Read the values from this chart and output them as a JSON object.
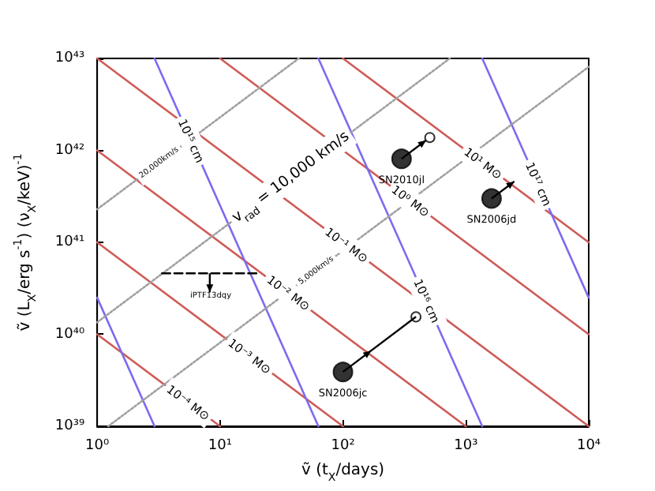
{
  "chart_data": {
    "type": "line",
    "log": "xy",
    "xlabel": "ṽ (t$_{X}$/days)",
    "ylabel": "ṽ (L$_{X}$/erg s$^{-1}$) (ν$_{X}$/keV)$^{-1}$",
    "xlim": [
      1,
      10000
    ],
    "ylim": [
      1e+39,
      1e+43
    ],
    "xticks": [
      {
        "value": 1,
        "label": "10⁰"
      },
      {
        "value": 10,
        "label": "10¹"
      },
      {
        "value": 100,
        "label": "10²"
      },
      {
        "value": 1000,
        "label": "10³"
      },
      {
        "value": 10000,
        "label": "10⁴"
      }
    ],
    "yticks": [
      {
        "value": 1e+39,
        "label": "10³⁹"
      },
      {
        "value": 1e+40,
        "label": "10⁴⁰"
      },
      {
        "value": 1e+41,
        "label": "10⁴¹"
      },
      {
        "value": 1e+42,
        "label": "10⁴²"
      },
      {
        "value": 1e+43,
        "label": "10⁴³"
      }
    ],
    "series": [
      {
        "color": "#cf5b58",
        "x": [
          1,
          10
        ],
        "values": [
          1e+40,
          1e+39
        ]
      },
      {
        "color": "#cf5b58",
        "x": [
          1,
          100
        ],
        "values": [
          1e+41,
          1e+39
        ]
      },
      {
        "color": "#cf5b58",
        "x": [
          1,
          1000
        ],
        "values": [
          1e+42,
          1e+39
        ]
      },
      {
        "color": "#cf5b58",
        "x": [
          1,
          10000
        ],
        "values": [
          1e+43,
          1e+39
        ]
      },
      {
        "color": "#cf5b58",
        "x": [
          10,
          10000
        ],
        "values": [
          1e+43,
          1e+40
        ]
      },
      {
        "color": "#cf5b58",
        "x": [
          100,
          10000
        ],
        "values": [
          1e+43,
          1e+41
        ]
      },
      {
        "color": "#7b6cf0",
        "x": [
          1,
          2.93
        ],
        "values": [
          2.5e+40,
          1e+39
        ]
      },
      {
        "color": "#7b6cf0",
        "x": [
          2.93,
          63.1
        ],
        "values": [
          1e+43,
          1e+39
        ]
      },
      {
        "color": "#7b6cf0",
        "x": [
          63.1,
          1360
        ],
        "values": [
          1e+43,
          1e+39
        ]
      },
      {
        "color": "#7b6cf0",
        "x": [
          1360,
          10000
        ],
        "values": [
          1e+43,
          2.5e+40
        ]
      },
      {
        "color": "#a0a0a0",
        "line_style": "dotted",
        "x": [
          1,
          43.7
        ],
        "values": [
          2.29e+41,
          1e+43
        ]
      },
      {
        "color": "#a0a0a0",
        "line_style": "dotted",
        "x": [
          1,
          741
        ],
        "values": [
          1.35e+40,
          1e+43
        ]
      },
      {
        "color": "#a0a0a0",
        "line_style": "dotted",
        "x": [
          1.23,
          10000
        ],
        "values": [
          1e+39,
          8.1e+42
        ]
      },
      {
        "color": "#000000",
        "line_style": "dashed",
        "x": [
          3.37,
          20.2
        ],
        "values": [
          4.6e+40,
          4.6e+40
        ]
      },
      {
        "type": "scatter",
        "color": "#000000",
        "marker": "circle",
        "x": [
          300,
          1620,
          100
        ],
        "values": [
          8.1e+41,
          3e+41,
          3.9e+39
        ]
      },
      {
        "type": "scatter",
        "color": "#ffffff",
        "marker": "circle",
        "x": [
          509,
          393
        ],
        "values": [
          1.38e+42,
          1.55e+40
        ]
      }
    ],
    "annotations": [
      {
        "text": "10⁻⁴ M⊙",
        "x": 5.5,
        "y": 1.8e+39
      },
      {
        "text": "10⁻³ M⊙",
        "x": 17.4,
        "y": 5.75e+39
      },
      {
        "text": "10⁻² M⊙",
        "x": 36,
        "y": 2.8e+40
      },
      {
        "text": "10⁻¹ M⊙",
        "x": 107,
        "y": 9.3e+40
      },
      {
        "text": "10⁰ M⊙",
        "x": 355,
        "y": 2.8e+41
      },
      {
        "text": "10¹ M⊙",
        "x": 1380,
        "y": 7.2e+41
      },
      {
        "text": "10¹⁵ cm",
        "x": 5.8,
        "y": 1.27e+42
      },
      {
        "text": "10¹⁶ cm",
        "x": 479,
        "y": 2.3e+40
      },
      {
        "text": "10¹⁷ cm",
        "x": 3890,
        "y": 4.3e+41
      },
      {
        "text": "20,000km/s",
        "x": 3.2,
        "y": 7.3e+41
      },
      {
        "text": "v$_{rad}$ = 10,000 km/s",
        "x": 37.7,
        "y": 5.1e+41
      },
      {
        "text": "5,000km/s",
        "x": 60.8,
        "y": 4.9e+40
      },
      {
        "text": "SN2010jl",
        "x": 300,
        "y": 8.1e+41
      },
      {
        "text": "SN2006jd",
        "x": 1620,
        "y": 3e+41
      },
      {
        "text": "SN2006jc",
        "x": 100,
        "y": 3.9e+39
      },
      {
        "text": "iPTF13dqy",
        "x": 8.4,
        "y": 2.6e+40
      }
    ]
  }
}
